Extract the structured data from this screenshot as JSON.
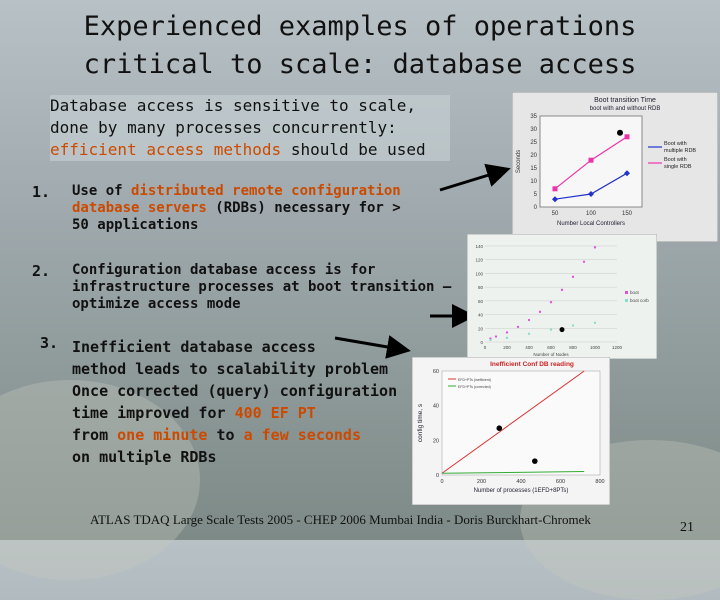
{
  "slide": {
    "title_line1": "Experienced examples of operations",
    "title_line2": "critical to scale: database access",
    "intro": {
      "part1": "Database access is sensitive to scale, done by many processes concurrently: ",
      "highlight": "efficient access methods",
      "part2": " should be used"
    },
    "item1": {
      "number": "1.",
      "pre": "Use of ",
      "highlight": "distributed remote configuration database servers",
      "post": " (RDBs) necessary for > 50 applications"
    },
    "item2": {
      "number": "2.",
      "text": "Configuration database access is for infrastructure processes at boot transition – optimize access mode"
    },
    "item3": {
      "number": "3.",
      "line1": "Inefficient database access",
      "line2": "method leads to scalability problem",
      "line3": "Once corrected (query) configuration",
      "line4_pre": "time improved for ",
      "line4_hl": "400 EF PT",
      "line5_pre": "from  ",
      "line5_hl1": "one minute",
      "line5_mid": " to ",
      "line5_hl2": "a few seconds",
      "line6": "on multiple RDBs"
    },
    "footer": "ATLAS TDAQ Large Scale Tests 2005 - CHEP 2006 Mumbai India  - Doris Burckhart-Chromek",
    "page_number": "21",
    "colors": {
      "highlight": "#cc4a00",
      "text": "#111111"
    }
  },
  "chart_data": [
    {
      "type": "line",
      "title": "Boot transition Time",
      "subtitle": "boot with and without RDB",
      "xlabel": "Number Local Controllers",
      "ylabel": "Seconds",
      "categories": [
        "50",
        "100",
        "150"
      ],
      "yticks": [
        "35",
        "30",
        "25",
        "20",
        "15",
        "10",
        "5",
        "0"
      ],
      "ylim": [
        0,
        35
      ],
      "series": [
        {
          "name": "Boot with multiple RDB",
          "values": [
            3,
            5,
            13
          ],
          "color": "#2233cc"
        },
        {
          "name": "Boot with single RDB",
          "values": [
            7,
            18,
            27
          ],
          "color": "#ee33aa"
        }
      ]
    },
    {
      "type": "scatter",
      "xlabel": "Number of Nodes",
      "xticks": [
        "0",
        "200",
        "400",
        "600",
        "800",
        "1000",
        "1200"
      ],
      "yticks": [
        "140",
        "120",
        "100",
        "80",
        "60",
        "40",
        "20",
        "0"
      ],
      "xlim": [
        0,
        1200
      ],
      "ylim": [
        0,
        140
      ],
      "series": [
        {
          "name": "boot",
          "color": "#dd55dd",
          "points": [
            [
              50,
              5
            ],
            [
              100,
              8
            ],
            [
              200,
              14
            ],
            [
              300,
              22
            ],
            [
              400,
              32
            ],
            [
              500,
              44
            ],
            [
              600,
              58
            ],
            [
              700,
              76
            ],
            [
              800,
              95
            ],
            [
              900,
              117
            ],
            [
              1000,
              138
            ]
          ]
        },
        {
          "name": "boot corb",
          "color": "#88ddcc",
          "points": [
            [
              50,
              3
            ],
            [
              200,
              6
            ],
            [
              400,
              12
            ],
            [
              600,
              18
            ],
            [
              800,
              24
            ],
            [
              1000,
              28
            ]
          ]
        }
      ]
    },
    {
      "type": "line",
      "title": "Inefficient Conf DB reading",
      "xlabel": "Number of processes (1EFD+8PTs)",
      "ylabel": "config time, s",
      "xticks": [
        "0",
        "200",
        "400",
        "600",
        "800"
      ],
      "yticks": [
        "60",
        "40",
        "20",
        "0"
      ],
      "xlim": [
        0,
        800
      ],
      "ylim": [
        0,
        60
      ],
      "series": [
        {
          "name": "EFD+PTs (inefficient)",
          "color": "#dd3333",
          "points": [
            [
              0,
              1
            ],
            [
              720,
              60
            ]
          ]
        },
        {
          "name": "EFD+PTs (corrected)",
          "color": "#33aa33",
          "points": [
            [
              0,
              1
            ],
            [
              720,
              2
            ]
          ]
        }
      ]
    }
  ]
}
